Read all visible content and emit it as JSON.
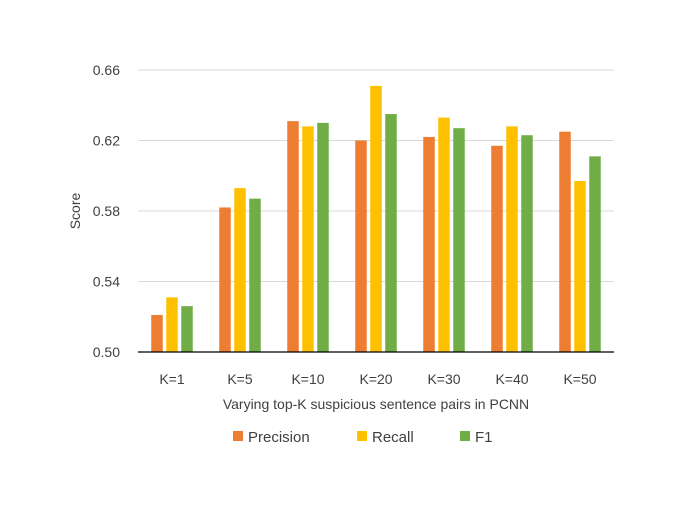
{
  "chart_data": {
    "type": "bar",
    "title": "",
    "xlabel": "Varying top-K suspicious sentence pairs in PCNN",
    "ylabel": "Score",
    "categories": [
      "K=1",
      "K=5",
      "K=10",
      "K=20",
      "K=30",
      "K=40",
      "K=50"
    ],
    "ylim": [
      0.5,
      0.66
    ],
    "yticks": [
      "0.50",
      "0.54",
      "0.58",
      "0.62",
      "0.66"
    ],
    "grid": true,
    "legend_position": "bottom",
    "series": [
      {
        "name": "Precision",
        "color": "#ED7D31",
        "values": [
          0.521,
          0.582,
          0.631,
          0.62,
          0.622,
          0.617,
          0.625
        ]
      },
      {
        "name": "Recall",
        "color": "#FFC000",
        "values": [
          0.531,
          0.593,
          0.628,
          0.651,
          0.633,
          0.628,
          0.597
        ]
      },
      {
        "name": "F1",
        "color": "#70AD47",
        "values": [
          0.526,
          0.587,
          0.63,
          0.635,
          0.627,
          0.623,
          0.611
        ]
      }
    ]
  }
}
